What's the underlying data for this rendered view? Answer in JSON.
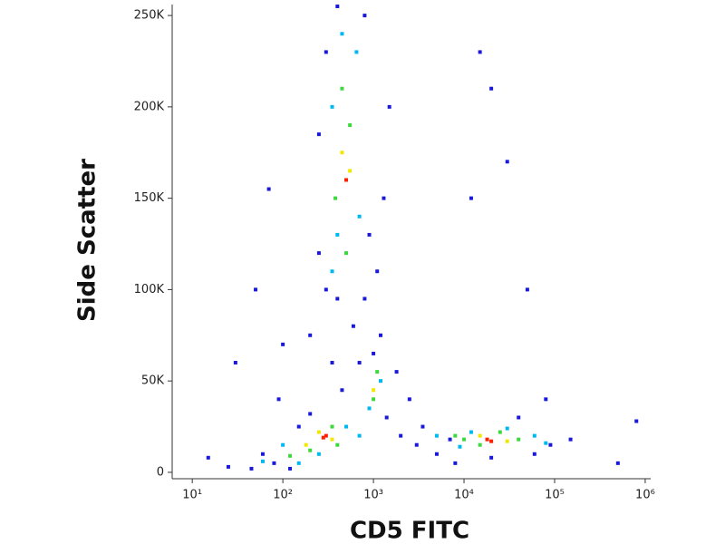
{
  "chart_data": {
    "type": "scatter",
    "x_label": "CD5 FITC",
    "y_label": "Side Scatter",
    "xscale": "log",
    "xlim": [
      6,
      1150000
    ],
    "ylim": [
      -3500,
      256000
    ],
    "xticks": [
      {
        "value": 10,
        "label": "10¹"
      },
      {
        "value": 100,
        "label": "10²"
      },
      {
        "value": 1000,
        "label": "10³"
      },
      {
        "value": 10000,
        "label": "10⁴"
      },
      {
        "value": 100000,
        "label": "10⁵"
      },
      {
        "value": 1000000,
        "label": "10⁶"
      }
    ],
    "yticks": [
      {
        "value": 0,
        "label": "0"
      },
      {
        "value": 50000,
        "label": "50K"
      },
      {
        "value": 100000,
        "label": "100K"
      },
      {
        "value": 150000,
        "label": "150K"
      },
      {
        "value": 200000,
        "label": "200K"
      },
      {
        "value": 250000,
        "label": "250K"
      }
    ],
    "series": [
      {
        "color": "#1a1ad6",
        "x": [
          15,
          25,
          45,
          60,
          80,
          120,
          150,
          200,
          90,
          30,
          50,
          70,
          100,
          200,
          250,
          300,
          350,
          450,
          600,
          700,
          800,
          900,
          1100,
          1300,
          1500,
          1200,
          1800,
          2500,
          3000,
          5000,
          8000,
          20000,
          60000,
          90000,
          150000,
          20000,
          12000,
          30000,
          15000,
          50000,
          80000,
          500000,
          800000,
          300,
          400,
          800,
          250,
          400,
          1000,
          1400,
          2000,
          3500,
          40000,
          7000
        ],
        "values": [
          8000,
          3000,
          2000,
          10000,
          5000,
          2000,
          25000,
          32000,
          40000,
          60000,
          100000,
          155000,
          70000,
          75000,
          120000,
          100000,
          60000,
          45000,
          80000,
          60000,
          95000,
          130000,
          110000,
          150000,
          200000,
          75000,
          55000,
          40000,
          15000,
          10000,
          5000,
          8000,
          10000,
          15000,
          18000,
          210000,
          150000,
          170000,
          230000,
          100000,
          40000,
          5000,
          28000,
          230000,
          255000,
          250000,
          185000,
          95000,
          65000,
          30000,
          20000,
          25000,
          30000,
          18000
        ]
      },
      {
        "color": "#00b8f0",
        "x": [
          60,
          100,
          150,
          250,
          500,
          700,
          350,
          350,
          450,
          650,
          700,
          400,
          900,
          1200,
          5000,
          9000,
          30000,
          60000,
          80000,
          12000
        ],
        "values": [
          6000,
          15000,
          5000,
          10000,
          25000,
          20000,
          110000,
          200000,
          240000,
          230000,
          140000,
          130000,
          35000,
          50000,
          20000,
          14000,
          24000,
          20000,
          16000,
          22000
        ]
      },
      {
        "color": "#3ed83e",
        "x": [
          120,
          200,
          350,
          400,
          380,
          450,
          550,
          500,
          1000,
          1100,
          10000,
          15000,
          40000,
          25000,
          8000
        ],
        "values": [
          9000,
          12000,
          25000,
          15000,
          150000,
          210000,
          190000,
          120000,
          40000,
          55000,
          18000,
          15000,
          18000,
          22000,
          20000
        ]
      },
      {
        "color": "#f0e800",
        "x": [
          250,
          350,
          450,
          550,
          1000,
          15000,
          30000,
          180
        ],
        "values": [
          22000,
          18000,
          175000,
          165000,
          45000,
          20000,
          17000,
          15000
        ]
      },
      {
        "color": "#ff2000",
        "x": [
          300,
          280,
          500,
          18000,
          20000
        ],
        "values": [
          20000,
          19000,
          160000,
          18000,
          17000
        ]
      }
    ]
  }
}
